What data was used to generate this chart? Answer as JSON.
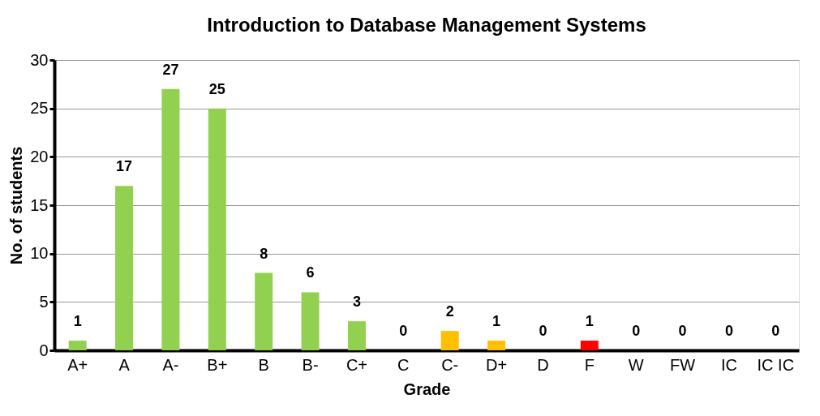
{
  "chart_data": {
    "type": "bar",
    "title": "Introduction to Database Management Systems",
    "xlabel": "Grade",
    "ylabel": "No. of students",
    "categories": [
      "A+",
      "A",
      "A-",
      "B+",
      "B",
      "B-",
      "C+",
      "C",
      "C-",
      "D+",
      "D",
      "F",
      "W",
      "FW",
      "IC",
      "IC IC"
    ],
    "values": [
      1,
      17,
      27,
      25,
      8,
      6,
      3,
      0,
      2,
      1,
      0,
      1,
      0,
      0,
      0,
      0
    ],
    "colors": [
      "#92d050",
      "#92d050",
      "#92d050",
      "#92d050",
      "#92d050",
      "#92d050",
      "#92d050",
      "#92d050",
      "#ffc000",
      "#ffc000",
      "#ffc000",
      "#ff0000",
      "#92d050",
      "#92d050",
      "#92d050",
      "#92d050"
    ],
    "ylim": [
      0,
      30
    ],
    "yticks": [
      0,
      5,
      10,
      15,
      20,
      25,
      30
    ],
    "grid": "y",
    "data_labels": true
  }
}
